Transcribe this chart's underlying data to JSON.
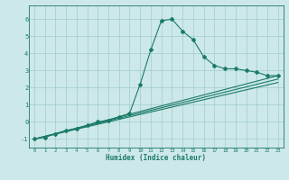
{
  "xlabel": "Humidex (Indice chaleur)",
  "bg_color": "#cde8e8",
  "line_color": "#1a7a6a",
  "grid_color": "#a0cccc",
  "xlim": [
    -0.5,
    23.5
  ],
  "ylim": [
    -1.5,
    6.8
  ],
  "yticks": [
    -1,
    0,
    1,
    2,
    3,
    4,
    5,
    6
  ],
  "xticks": [
    0,
    1,
    2,
    3,
    4,
    5,
    6,
    7,
    8,
    9,
    10,
    11,
    12,
    13,
    14,
    15,
    16,
    17,
    18,
    19,
    20,
    21,
    22,
    23
  ],
  "series1_x": [
    0,
    1,
    2,
    3,
    4,
    5,
    6,
    7,
    8,
    9,
    10,
    11,
    12,
    13,
    14,
    15,
    16,
    17,
    18,
    19,
    20,
    21,
    22,
    23
  ],
  "series1_y": [
    -1.0,
    -0.9,
    -0.7,
    -0.5,
    -0.4,
    -0.2,
    0.0,
    0.1,
    0.3,
    0.5,
    2.2,
    4.2,
    5.9,
    6.0,
    5.3,
    4.8,
    3.8,
    3.3,
    3.1,
    3.1,
    3.0,
    2.9,
    2.7,
    2.7
  ],
  "series2_x": [
    0,
    23
  ],
  "series2_y": [
    -1.0,
    2.7
  ],
  "series3_x": [
    0,
    23
  ],
  "series3_y": [
    -1.0,
    2.5
  ],
  "series4_x": [
    0,
    23
  ],
  "series4_y": [
    -1.0,
    2.3
  ],
  "figsize": [
    3.2,
    2.0
  ],
  "dpi": 100
}
